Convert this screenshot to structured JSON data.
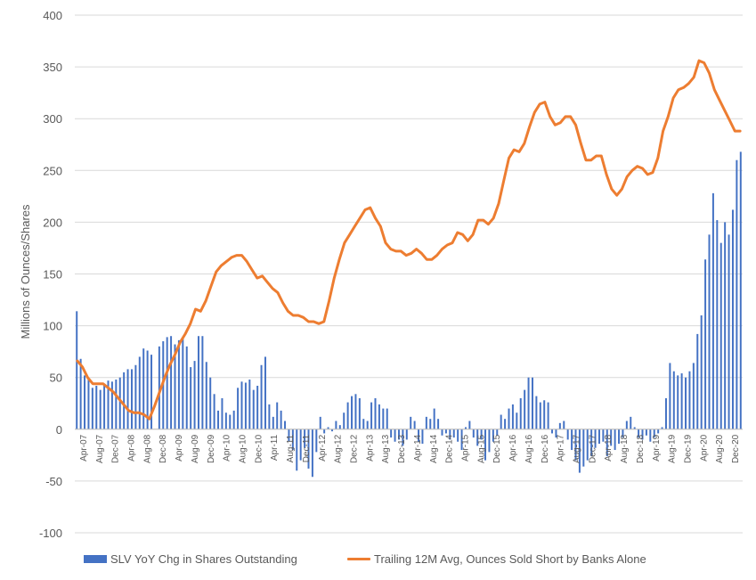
{
  "chart_data": {
    "type": "bar+line",
    "ylabel": "Millions of Ounces/Shares",
    "ylim": [
      -100,
      400
    ],
    "yticks": [
      -100,
      -50,
      0,
      50,
      100,
      150,
      200,
      250,
      300,
      350,
      400
    ],
    "grid": true,
    "legend_position": "bottom",
    "x_tick_labels": [
      "Apr-07",
      "Aug-07",
      "Dec-07",
      "Apr-08",
      "Aug-08",
      "Dec-08",
      "Apr-09",
      "Aug-09",
      "Dec-09",
      "Apr-10",
      "Aug-10",
      "Dec-10",
      "Apr-11",
      "Aug-11",
      "Dec-11",
      "Apr-12",
      "Aug-12",
      "Dec-12",
      "Apr-13",
      "Aug-13",
      "Dec-13",
      "Apr-14",
      "Aug-14",
      "Dec-14",
      "Apr-15",
      "Aug-15",
      "Dec-15",
      "Apr-16",
      "Aug-16",
      "Dec-16",
      "Apr-17",
      "Aug-17",
      "Dec-17",
      "Apr-18",
      "Aug-18",
      "Dec-18",
      "Apr-19",
      "Aug-19",
      "Dec-19",
      "Apr-20",
      "Aug-20",
      "Dec-20"
    ],
    "series": [
      {
        "name": "SLV YoY Chg in Shares Outstanding",
        "type": "bar",
        "color": "#4472C4",
        "values": [
          114,
          68,
          52,
          50,
          40,
          42,
          38,
          44,
          47,
          46,
          48,
          50,
          55,
          58,
          58,
          62,
          70,
          78,
          76,
          72,
          0,
          80,
          85,
          89,
          90,
          82,
          86,
          88,
          80,
          60,
          66,
          90,
          90,
          65,
          50,
          34,
          18,
          30,
          16,
          14,
          18,
          40,
          46,
          45,
          48,
          38,
          42,
          62,
          70,
          24,
          12,
          26,
          18,
          8,
          -12,
          -20,
          -40,
          -30,
          -18,
          -38,
          -46,
          -22,
          12,
          -4,
          2,
          -2,
          8,
          4,
          16,
          26,
          32,
          34,
          30,
          10,
          8,
          26,
          30,
          24,
          20,
          20,
          -8,
          -12,
          -10,
          -16,
          -10,
          12,
          8,
          -12,
          -14,
          12,
          10,
          20,
          10,
          -6,
          -4,
          -10,
          -8,
          -12,
          -20,
          2,
          8,
          -8,
          -16,
          -10,
          -30,
          -22,
          -12,
          -6,
          14,
          10,
          20,
          24,
          16,
          30,
          38,
          50,
          50,
          32,
          26,
          28,
          26,
          -4,
          -8,
          6,
          8,
          -10,
          -20,
          -30,
          -42,
          -36,
          -30,
          -26,
          -18,
          -14,
          -12,
          -26,
          -16,
          -20,
          -14,
          -8,
          8,
          12,
          2,
          -8,
          -10,
          -6,
          -12,
          -8,
          -4,
          2,
          30,
          64,
          56,
          52,
          54,
          50,
          56,
          64,
          92,
          110,
          164,
          188,
          228,
          202,
          180,
          200,
          188,
          212,
          260,
          268
        ]
      },
      {
        "name": "Trailing 12M Avg, Ounces Sold Short by Banks Alone",
        "type": "line",
        "color": "#ED7D31",
        "values": [
          66,
          60,
          50,
          44,
          44,
          44,
          40,
          36,
          30,
          24,
          18,
          16,
          16,
          14,
          10,
          22,
          36,
          50,
          62,
          72,
          84,
          92,
          102,
          116,
          114,
          124,
          138,
          152,
          158,
          162,
          166,
          168,
          168,
          162,
          154,
          146,
          148,
          142,
          136,
          132,
          122,
          114,
          110,
          110,
          108,
          104,
          104,
          102,
          104,
          124,
          146,
          164,
          180,
          188,
          196,
          204,
          212,
          214,
          204,
          196,
          180,
          174,
          172,
          172,
          168,
          170,
          174,
          170,
          164,
          164,
          168,
          174,
          178,
          180,
          190,
          188,
          182,
          188,
          202,
          202,
          198,
          204,
          218,
          240,
          262,
          270,
          268,
          276,
          292,
          306,
          314,
          316,
          302,
          294,
          296,
          302,
          302,
          294,
          276,
          260,
          260,
          264,
          264,
          246,
          232,
          226,
          232,
          244,
          250,
          254,
          252,
          246,
          248,
          262,
          288,
          302,
          320,
          328,
          330,
          334,
          340,
          356,
          354,
          344,
          328,
          318,
          308,
          298,
          288,
          288
        ]
      }
    ]
  },
  "legend": {
    "bar_label": "SLV YoY Chg in Shares Outstanding",
    "line_label": "Trailing 12M Avg, Ounces Sold Short by Banks Alone"
  }
}
